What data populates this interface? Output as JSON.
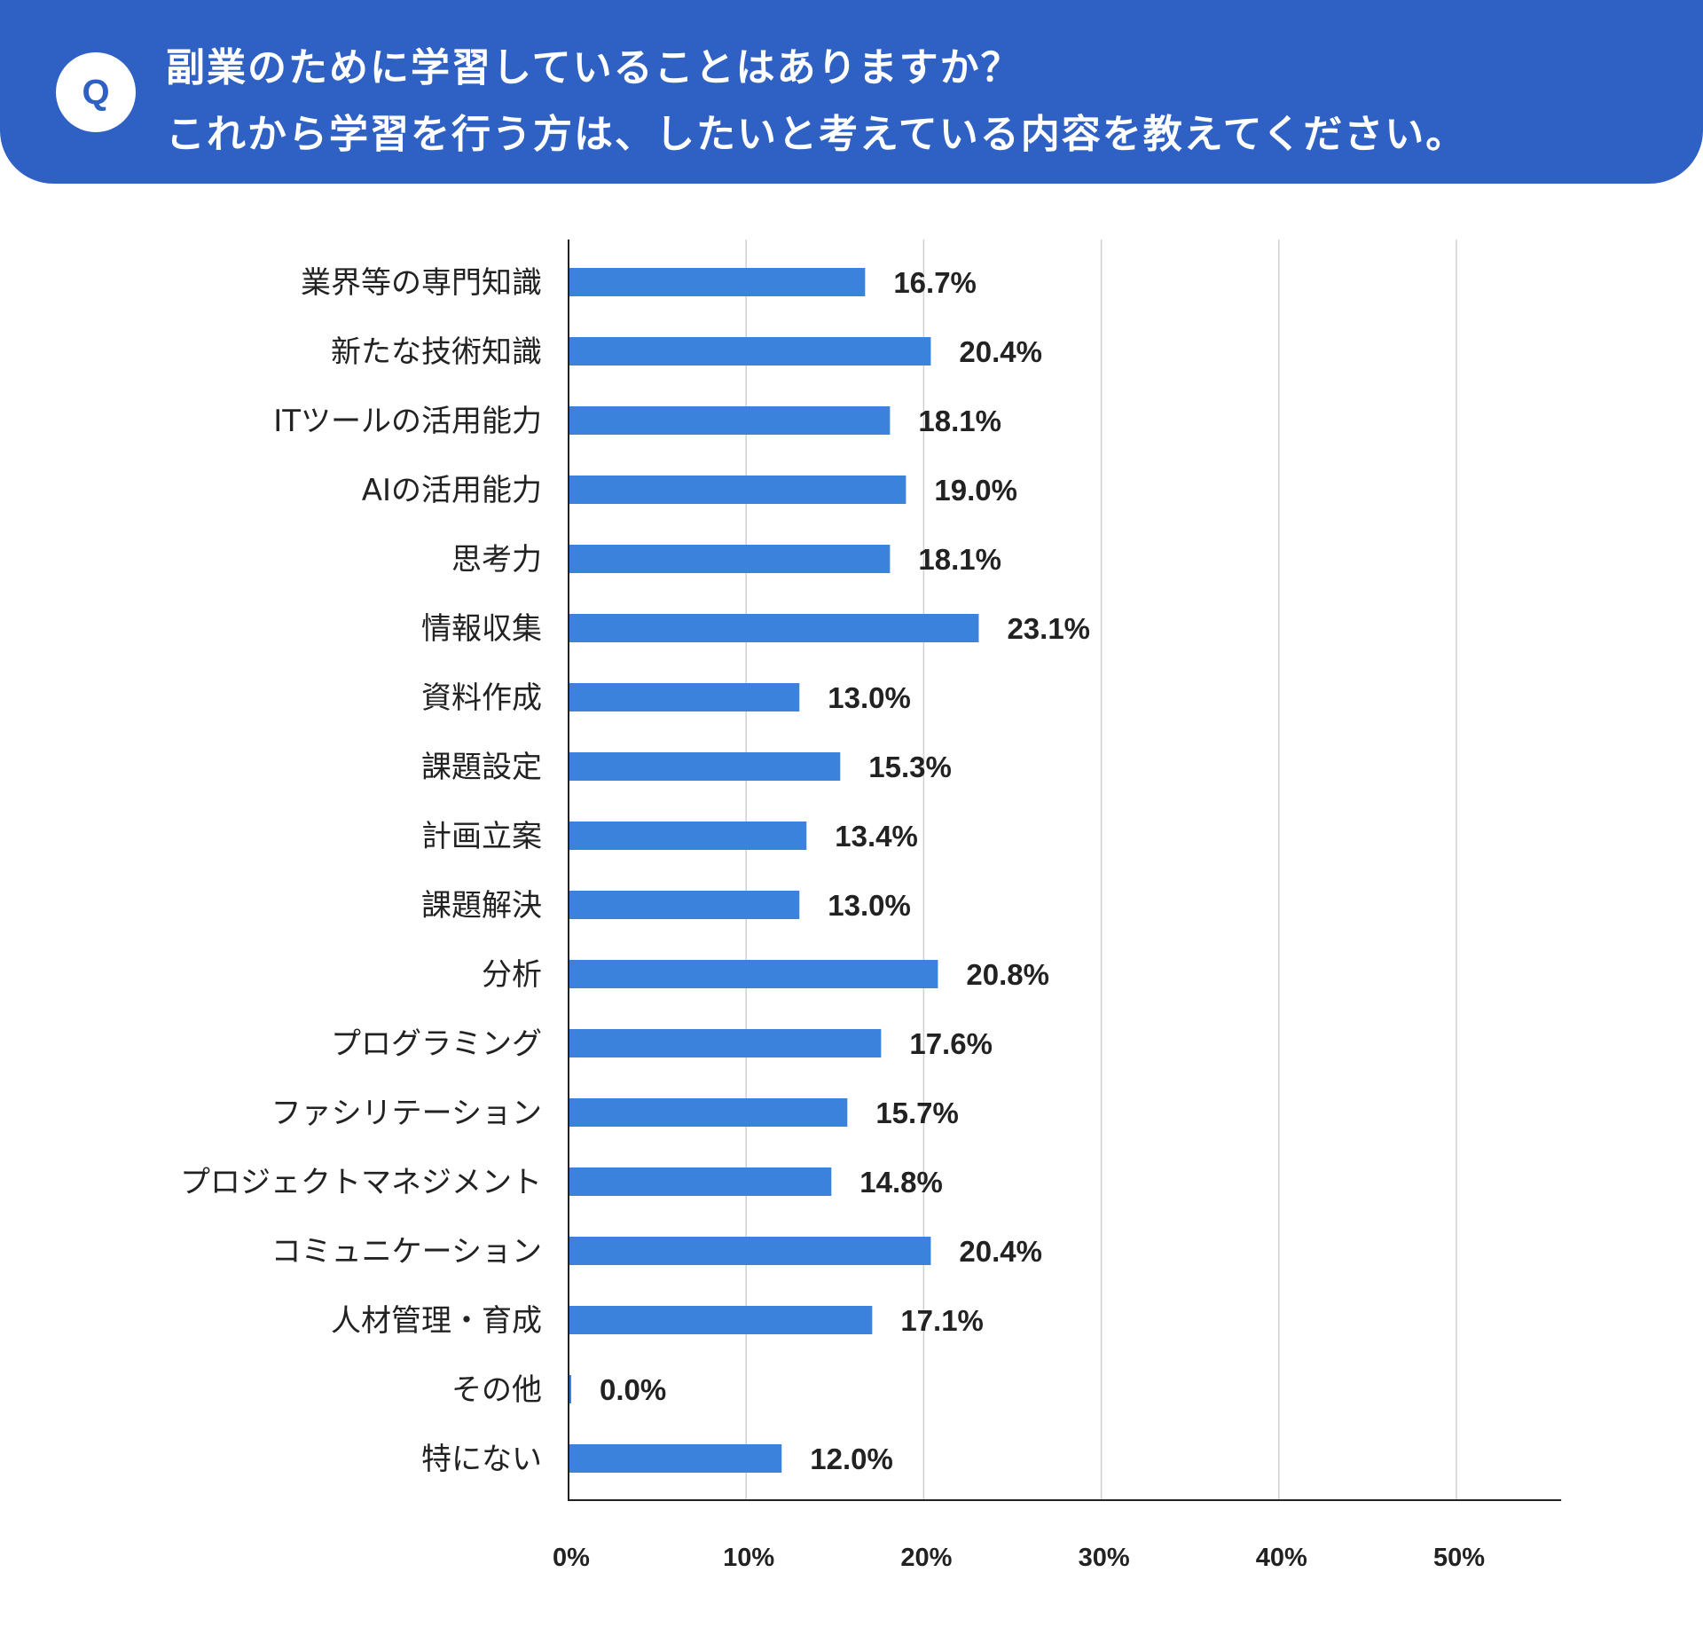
{
  "question": {
    "badge": "Q",
    "line1": "副業のために学習していることはありますか？",
    "line2": "これから学習を行う方は、したいと考えている内容を教えてください。"
  },
  "colors": {
    "header": "#2f61c4",
    "bar": "#3a82db",
    "grid": "#d0d0d0",
    "axis": "#222222"
  },
  "chart_data": {
    "type": "bar",
    "orientation": "horizontal",
    "title": "副業のために学習していることはありますか？ これから学習を行う方は、したいと考えている内容を教えてください。",
    "categories": [
      "業界等の専門知識",
      "新たな技術知識",
      "ITツールの活用能力",
      "AIの活用能力",
      "思考力",
      "情報収集",
      "資料作成",
      "課題設定",
      "計画立案",
      "課題解決",
      "分析",
      "プログラミング",
      "ファシリテーション",
      "プロジェクトマネジメント",
      "コミュニケーション",
      "人材管理・育成",
      "その他",
      "特にない"
    ],
    "values": [
      16.7,
      20.4,
      18.1,
      19.0,
      18.1,
      23.1,
      13.0,
      15.3,
      13.4,
      13.0,
      20.8,
      17.6,
      15.7,
      14.8,
      20.4,
      17.1,
      0.0,
      12.0
    ],
    "value_labels": [
      "16.7%",
      "20.4%",
      "18.1%",
      "19.0%",
      "18.1%",
      "23.1%",
      "13.0%",
      "15.3%",
      "13.4%",
      "13.0%",
      "20.8%",
      "17.6%",
      "15.7%",
      "14.8%",
      "20.4%",
      "17.1%",
      "0.0%",
      "12.0%"
    ],
    "xticks": [
      0,
      10,
      20,
      30,
      40,
      50
    ],
    "xtick_labels": [
      "0%",
      "10%",
      "20%",
      "30%",
      "40%",
      "50%"
    ],
    "xlim": [
      0,
      55.9
    ],
    "grid": true,
    "xlabel": "",
    "ylabel": ""
  }
}
